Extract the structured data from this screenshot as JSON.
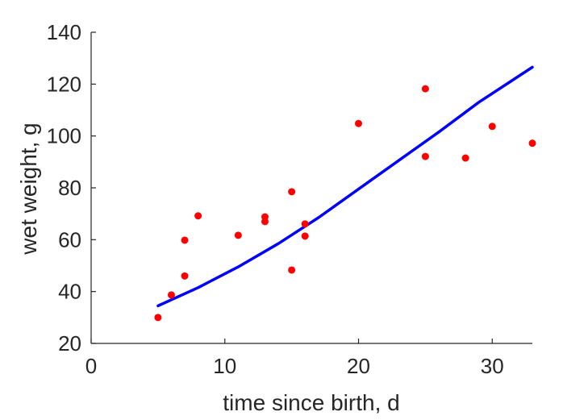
{
  "chart_data": {
    "type": "scatter",
    "title": "",
    "xlabel": "time since birth, d",
    "ylabel": "wet weight, g",
    "xlim": [
      0,
      33
    ],
    "ylim": [
      20,
      140
    ],
    "xticks": [
      0,
      10,
      20,
      30
    ],
    "yticks": [
      20,
      40,
      60,
      80,
      100,
      120,
      140
    ],
    "grid": false,
    "series": [
      {
        "type": "scatter",
        "color": "#ff0000",
        "x": [
          5,
          6,
          7,
          7,
          8,
          11,
          13,
          13,
          15,
          15,
          16,
          16,
          20,
          25,
          25,
          28,
          30,
          33
        ],
        "y": [
          30,
          38.7,
          46,
          59.8,
          69.2,
          61.7,
          67,
          68.8,
          48.3,
          78.5,
          61.4,
          66.1,
          104.8,
          118.2,
          92.1,
          91.5,
          103.7,
          97.2
        ]
      },
      {
        "type": "line",
        "color": "#0000ff",
        "x": [
          5,
          8,
          11,
          14,
          17,
          20,
          23,
          26,
          29,
          33
        ],
        "y": [
          34.5,
          41.5,
          49.5,
          58.5,
          68.5,
          79.5,
          90.5,
          101.5,
          113,
          126.5
        ]
      }
    ]
  }
}
